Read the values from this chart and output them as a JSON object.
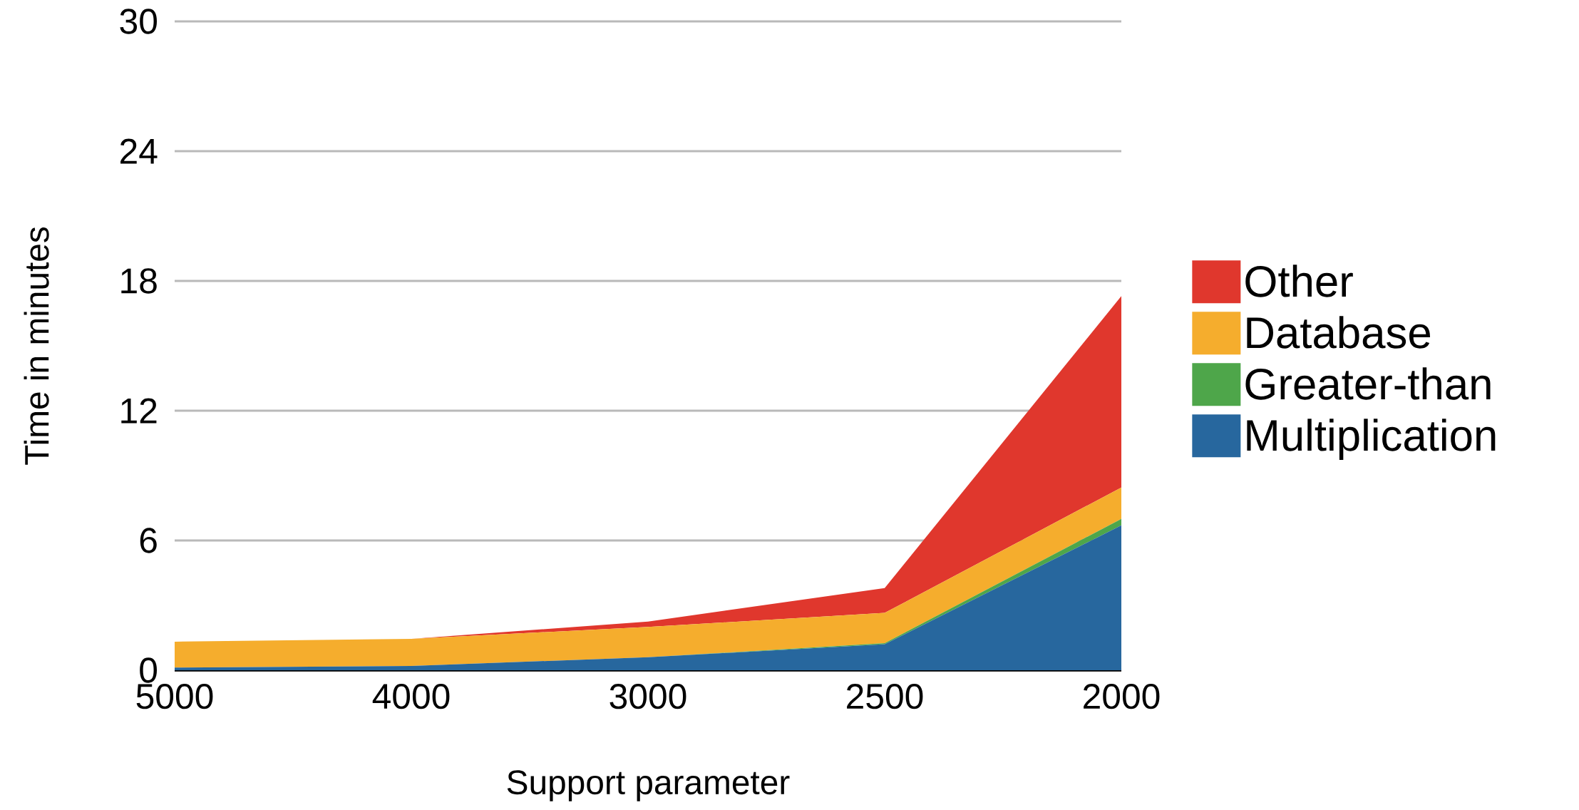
{
  "chart_data": {
    "type": "area",
    "stacked": true,
    "xlabel": "Support parameter",
    "ylabel": "Time in minutes",
    "categories": [
      "5000",
      "4000",
      "3000",
      "2500",
      "2000"
    ],
    "series": [
      {
        "name": "Multiplication",
        "color": "#27679e",
        "values": [
          0.12,
          0.2,
          0.6,
          1.2,
          6.7
        ]
      },
      {
        "name": "Greater-than",
        "color": "#4ea64a",
        "values": [
          0,
          0,
          0,
          0.05,
          0.3
        ]
      },
      {
        "name": "Database",
        "color": "#f5ad2d",
        "values": [
          1.2,
          1.25,
          1.4,
          1.4,
          1.45
        ]
      },
      {
        "name": "Other",
        "color": "#e0372d",
        "values": [
          0,
          0,
          0.25,
          1.15,
          8.85
        ]
      }
    ],
    "ylim": [
      0,
      30
    ],
    "yticks": [
      0,
      6,
      12,
      18,
      24,
      30
    ],
    "grid": "y",
    "legend": "right"
  }
}
